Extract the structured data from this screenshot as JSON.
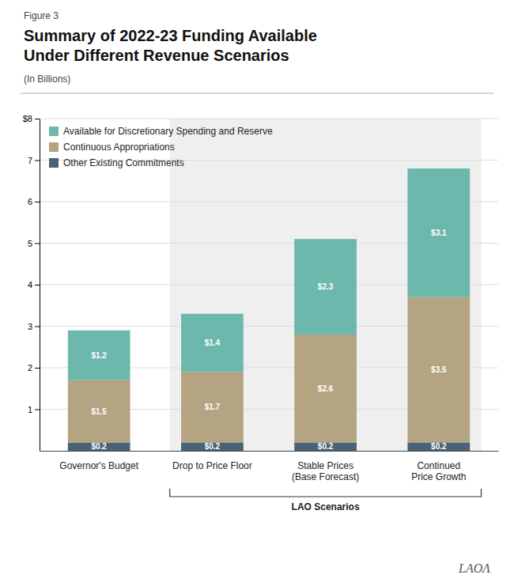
{
  "chart_data": {
    "type": "bar",
    "figure_label": "Figure 3",
    "title": "Summary of 2022-23 Funding Available\nUnder Different Revenue Scenarios",
    "subtitle": "(In Billions)",
    "categories": [
      "Governor's Budget",
      "Drop to Price Floor",
      "Stable Prices\n(Base Forecast)",
      "Continued\nPrice Growth"
    ],
    "series": [
      {
        "name": "Other Existing Commitments",
        "color": "#4a6275",
        "values": [
          0.2,
          0.2,
          0.2,
          0.2
        ],
        "value_labels": [
          "$0.2",
          "$0.2",
          "$0.2",
          "$0.2"
        ]
      },
      {
        "name": "Continuous Appropriations",
        "color": "#b5a481",
        "values": [
          1.5,
          1.7,
          2.6,
          3.5
        ],
        "value_labels": [
          "$1.5",
          "$1.7",
          "$2.6",
          "$3.5"
        ]
      },
      {
        "name": "Available for Discretionary Spending and Reserve",
        "color": "#6cb8ad",
        "values": [
          1.2,
          1.4,
          2.3,
          3.1
        ],
        "value_labels": [
          "$1.2",
          "$1.4",
          "$2.3",
          "$3.1"
        ]
      }
    ],
    "stacked": true,
    "data_labels": true,
    "ylim": [
      0,
      8
    ],
    "yticks": [
      1,
      2,
      3,
      4,
      5,
      6,
      7,
      {
        "value": 8,
        "label": "$8"
      }
    ],
    "grid": true,
    "legend": "upper left",
    "annotations": [
      {
        "text": "LAO Scenarios",
        "from": "Drop to Price Floor",
        "to": "Continued\nPrice Growth"
      }
    ],
    "watermark": "LAOΛ"
  }
}
